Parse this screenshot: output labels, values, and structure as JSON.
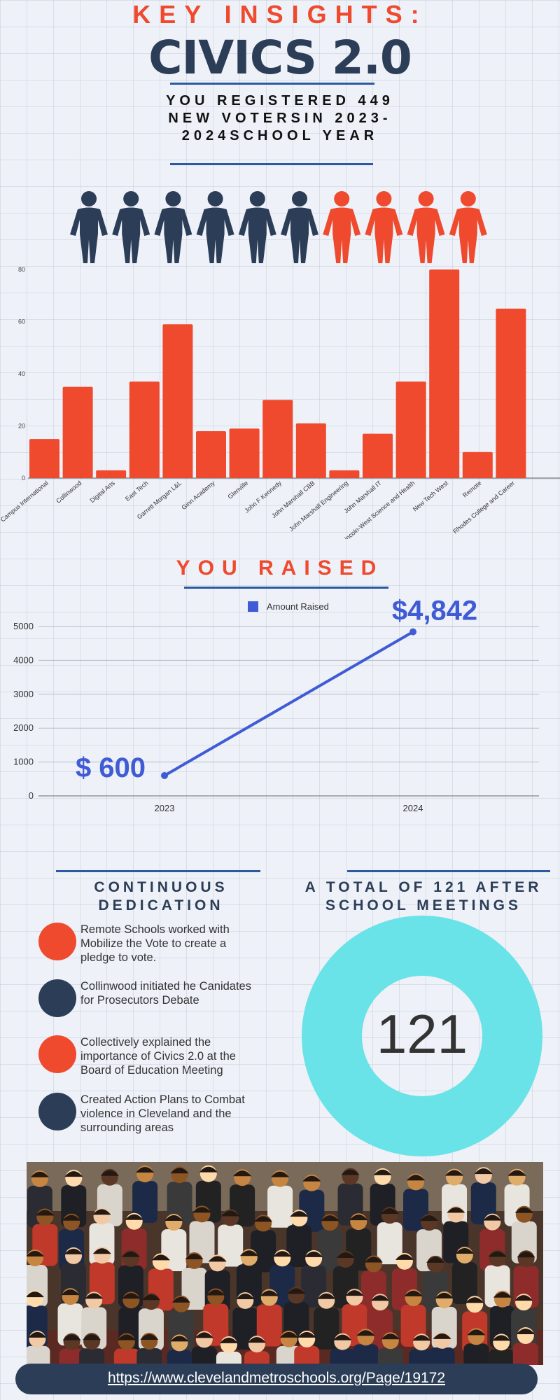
{
  "header": {
    "kicker": "KEY INSIGHTS:",
    "title": "CIVICS 2.0",
    "subtitle": "YOU REGISTERED 449 NEW VOTERSIN 2023-2024SCHOOL YEAR"
  },
  "people_icons": {
    "total": 10,
    "highlighted": 4,
    "base_color": "#2c3e57",
    "highlight_color": "#ef4a2d"
  },
  "colors": {
    "accent": "#ef4a2d",
    "navy": "#2c3e57",
    "line": "#3f5bd5",
    "rule": "#2b5aa0",
    "donut": "#6ae3e8"
  },
  "chart_data": [
    {
      "type": "bar",
      "categories": [
        "Campus International",
        "Collinwood",
        "Digital Arts",
        "East Tech",
        "Garrett Morgan L&L",
        "Ginn Academy",
        "Glenville",
        "John F Kennedy",
        "John Marshall CBB",
        "John Marshall Engineering",
        "John Marshall IT",
        "Lincoln-West Science and Health",
        "New Tech West",
        "Remote",
        "Rhodes College and Career"
      ],
      "values": [
        15,
        35,
        3,
        37,
        59,
        18,
        19,
        30,
        21,
        3,
        17,
        37,
        80,
        10,
        65
      ],
      "ylim": [
        0,
        80
      ],
      "yticks": [
        0,
        20,
        40,
        60,
        80
      ],
      "color": "#ef4a2d",
      "grid": false
    },
    {
      "type": "line",
      "title": "YOU RAISED",
      "x": [
        "2023",
        "2024"
      ],
      "series": [
        {
          "name": "Amount Raised",
          "values": [
            600,
            4842
          ]
        }
      ],
      "value_labels": [
        "$ 600",
        "$4,842"
      ],
      "ylim": [
        0,
        5000
      ],
      "yticks": [
        0,
        1000,
        2000,
        3000,
        4000,
        5000
      ],
      "legend": "top-center",
      "grid": true
    },
    {
      "type": "pie",
      "title": "A TOTAL OF 121 AFTER SCHOOL MEETINGS",
      "values": [
        121
      ],
      "center_label": "121",
      "color": "#6ae3e8"
    }
  ],
  "dedication": {
    "title": "CONTINUOUS DEDICATION",
    "items": [
      {
        "text": "Remote Schools worked with Mobilize the Vote to create a pledge to vote.",
        "color": "#ef4a2d"
      },
      {
        "text": "Collinwood initiated he Canidates for Prosecutors Debate",
        "color": "#2c3e57"
      },
      {
        "text": "Collectively explained the importance of Civics 2.0 at the Board of Education Meeting",
        "color": "#ef4a2d"
      },
      {
        "text": "Created Action Plans to Combat violence in Cleveland and the surrounding areas",
        "color": "#2c3e57"
      }
    ]
  },
  "footer": {
    "url": "https://www.clevelandmetroschools.org/Page/19172"
  }
}
